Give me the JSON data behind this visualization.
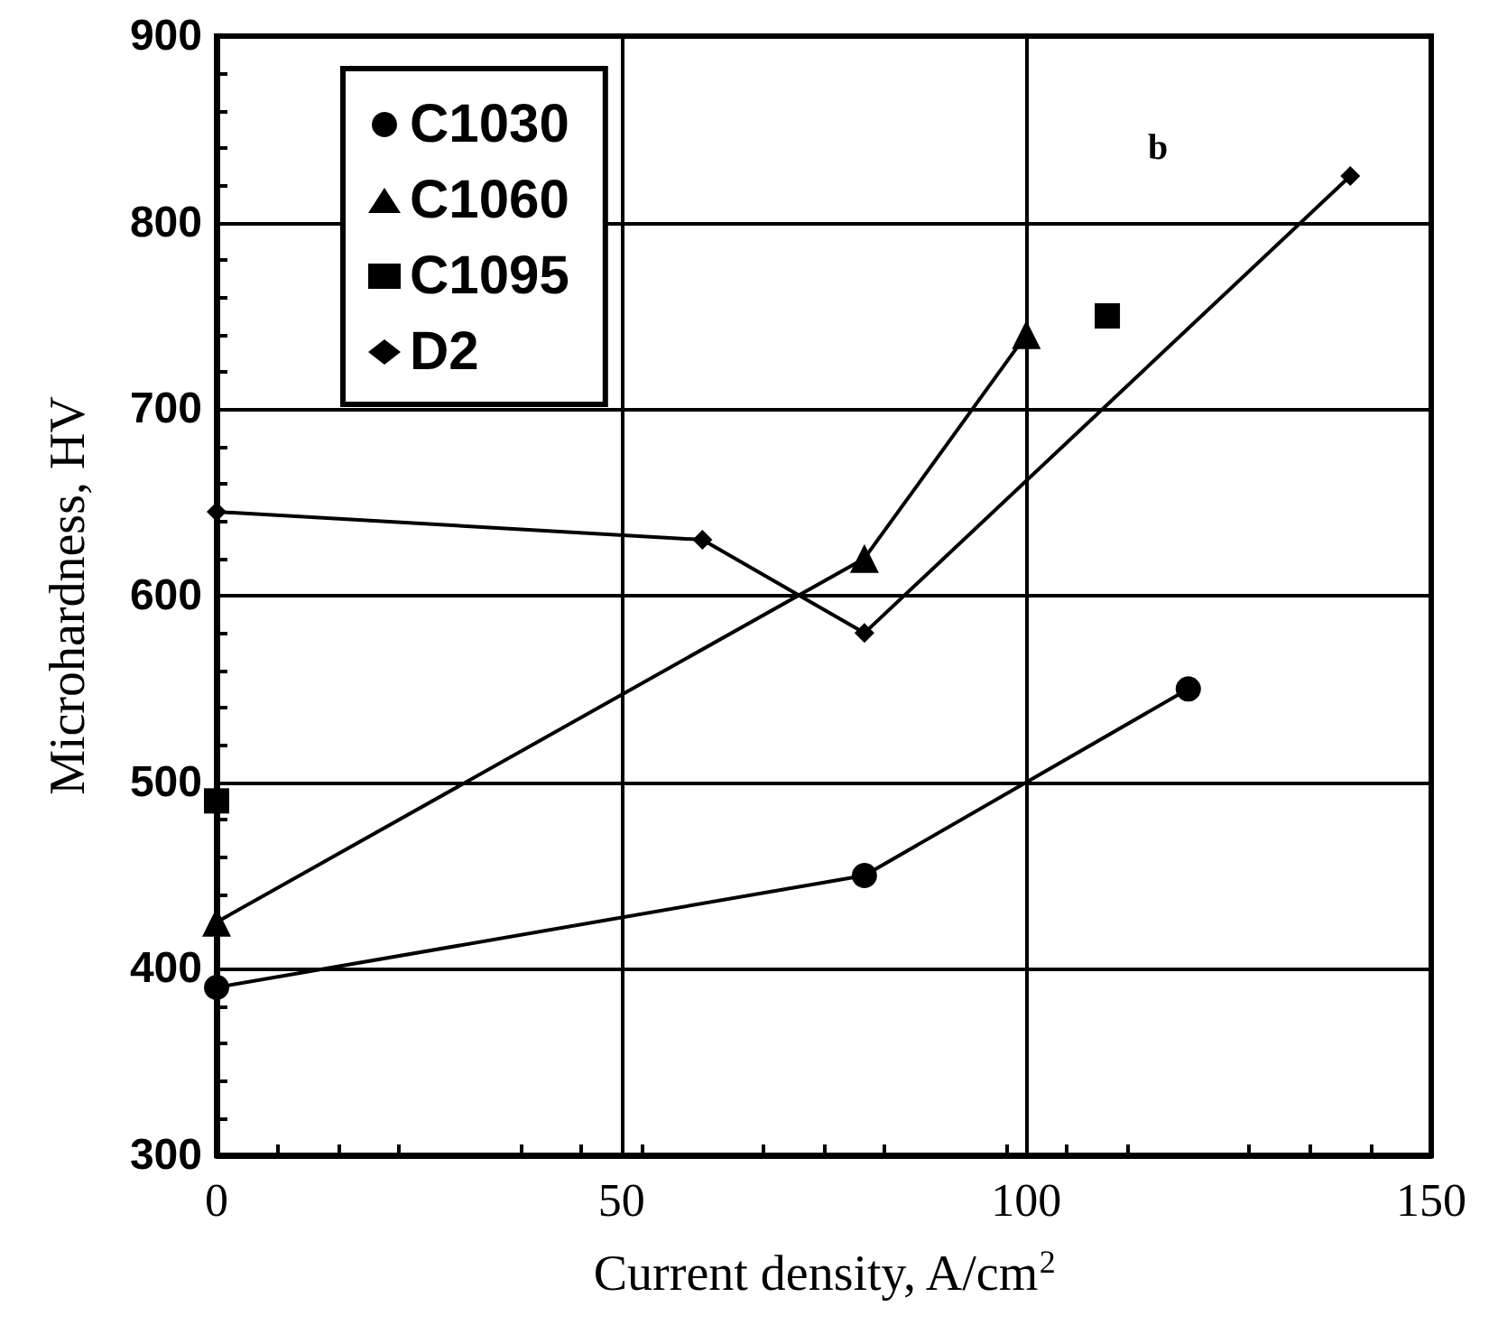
{
  "chart_data": {
    "type": "line",
    "xlabel": "Current density, A/cm$^{2}$",
    "ylabel": "Microhardness, HV",
    "annotations": [
      "b"
    ],
    "xlim": [
      0,
      150
    ],
    "xticks": [
      0,
      50,
      100,
      150
    ],
    "ylim": [
      300,
      900
    ],
    "yticks": [
      300,
      400,
      500,
      600,
      700,
      800,
      900
    ],
    "grid": true,
    "legend": "top left",
    "line_style": "solid",
    "series": [
      {
        "name": "C1030",
        "color": "#000000",
        "marker": "circle",
        "x": [
          0,
          80,
          120
        ],
        "values": [
          390,
          450,
          550
        ]
      },
      {
        "name": "C1060",
        "color": "#000000",
        "marker": "triangle",
        "x": [
          0,
          80,
          100
        ],
        "values": [
          425,
          620,
          740
        ]
      },
      {
        "name": "C1095",
        "color": "#000000",
        "marker": "square",
        "type": "scatter",
        "x": [
          0,
          110
        ],
        "values": [
          490,
          750
        ]
      },
      {
        "name": "D2",
        "color": "#000000",
        "marker": "diamond",
        "x": [
          0,
          60,
          80,
          140
        ],
        "values": [
          645,
          630,
          580,
          825
        ]
      }
    ]
  }
}
